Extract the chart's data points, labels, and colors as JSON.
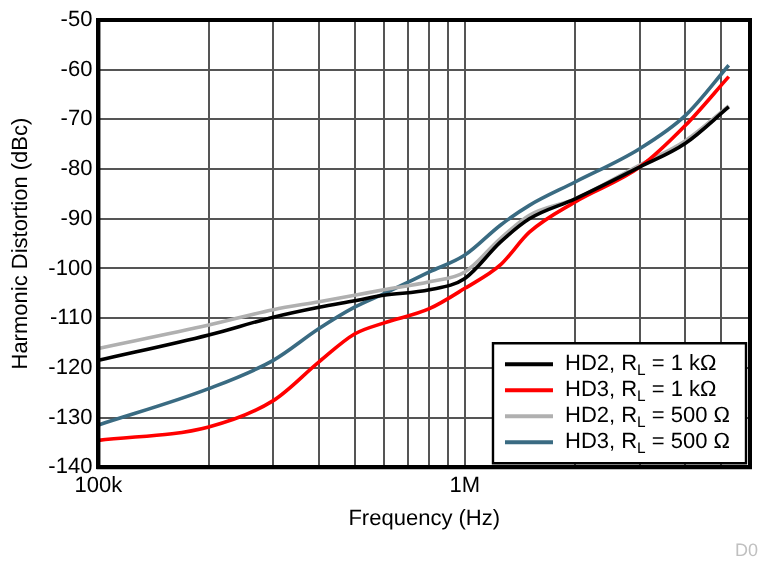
{
  "chart_data": {
    "type": "line",
    "xlabel": "Frequency (Hz)",
    "ylabel": "Harmonic Distortion (dBc)",
    "log": "x",
    "x": [
      100000,
      200000,
      300000,
      400000,
      500000,
      600000,
      800000,
      1000000,
      1250000,
      1500000,
      2000000,
      3000000,
      4000000,
      5250000
    ],
    "series": [
      {
        "name": "HD2, R$_{L}$ = 1 kΩ",
        "color": "#000000",
        "values": [
          -118.5,
          -113.4,
          -109.8,
          -107.8,
          -106.5,
          -105.4,
          -104.3,
          -102,
          -94.7,
          -90,
          -86,
          -79.6,
          -74.8,
          -67.5
        ]
      },
      {
        "name": "HD3, R$_{L}$ = 1 kΩ",
        "color": "#ff0000",
        "values": [
          -134.6,
          -131.9,
          -126.6,
          -118.8,
          -113.2,
          -111,
          -108.1,
          -104,
          -99.3,
          -92.7,
          -86.6,
          -79.6,
          -71.2,
          -61.4
        ]
      },
      {
        "name": "HD2, R$_{L}$ = 500 Ω",
        "color": "#b0b0b0",
        "values": [
          -116.1,
          -111.4,
          -108.3,
          -106.7,
          -105.4,
          -104.3,
          -102.7,
          -100.7,
          -94,
          -89.3,
          -86,
          -79.2,
          -74.3,
          -67.3
        ]
      },
      {
        "name": "HD3, R$_{L}$ = 500 Ω",
        "color": "#3a6b82",
        "values": [
          -131.5,
          -124.2,
          -118.5,
          -112.1,
          -107.8,
          -105.1,
          -100.7,
          -97.3,
          -91.3,
          -87.3,
          -82.6,
          -75.9,
          -69.2,
          -59.1
        ]
      }
    ],
    "xlim": [
      100000,
      6000000
    ],
    "xticks": [
      {
        "value": 100000,
        "label": "100k"
      },
      {
        "value": 200000,
        "label": null
      },
      {
        "value": 300000,
        "label": null
      },
      {
        "value": 400000,
        "label": null
      },
      {
        "value": 500000,
        "label": null
      },
      {
        "value": 600000,
        "label": null
      },
      {
        "value": 700000,
        "label": null
      },
      {
        "value": 800000,
        "label": null
      },
      {
        "value": 900000,
        "label": null
      },
      {
        "value": 1000000,
        "label": "1M"
      },
      {
        "value": 2000000,
        "label": null
      },
      {
        "value": 3000000,
        "label": null
      },
      {
        "value": 4000000,
        "label": null
      },
      {
        "value": 5000000,
        "label": null
      }
    ],
    "ylim": [
      -140,
      -50
    ],
    "yticks": [
      -140,
      -130,
      -120,
      -110,
      -100,
      -90,
      -80,
      -70,
      -60,
      -50
    ],
    "grid": true,
    "legend": "bottom right",
    "marker": "none",
    "line_style": "solid",
    "annotations": [
      "D0"
    ]
  }
}
